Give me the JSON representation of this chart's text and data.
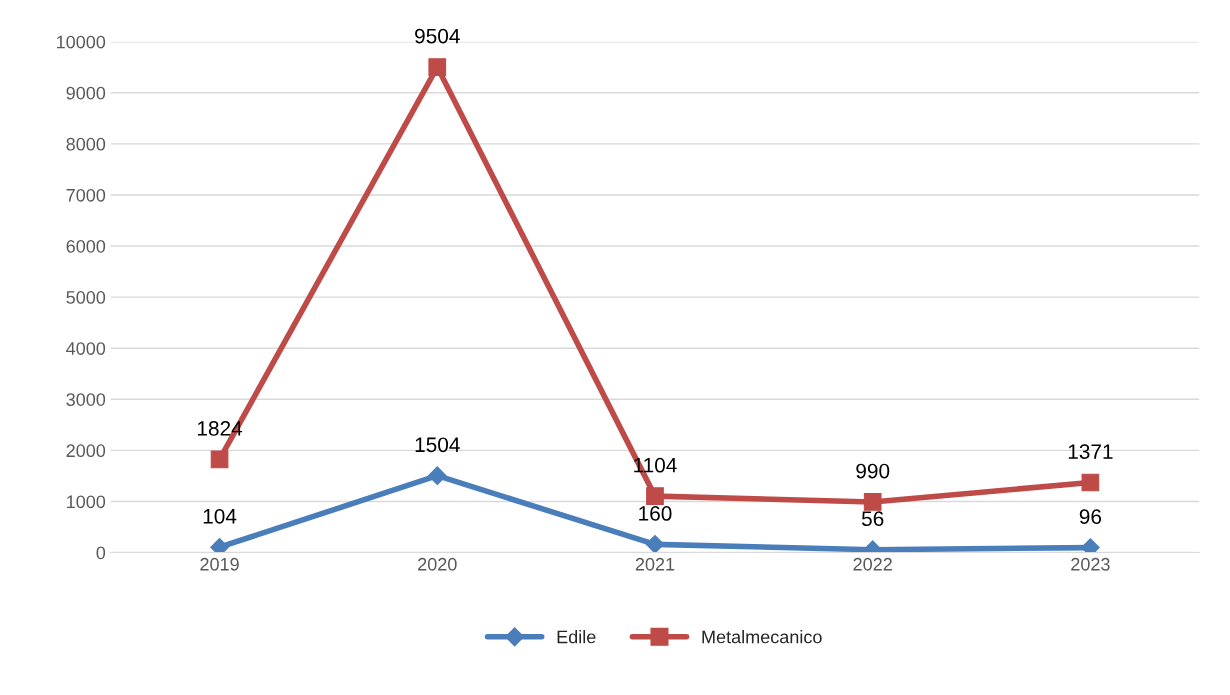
{
  "chart_data": {
    "type": "line",
    "categories": [
      "2019",
      "2020",
      "2021",
      "2022",
      "2023"
    ],
    "series": [
      {
        "name": "Edile",
        "color": "#4a7ebb",
        "marker": "diamond",
        "values": [
          104,
          1504,
          160,
          56,
          96
        ]
      },
      {
        "name": "Metalmecanico",
        "color": "#be4b48",
        "marker": "square",
        "values": [
          1824,
          9504,
          1104,
          990,
          1371
        ]
      }
    ],
    "ylim": [
      0,
      10000
    ],
    "yticks": [
      0,
      1000,
      2000,
      3000,
      4000,
      5000,
      6000,
      7000,
      8000,
      9000,
      10000
    ],
    "grid": "y",
    "legend": "bottom",
    "data_labels": true,
    "line_style": "solid"
  }
}
